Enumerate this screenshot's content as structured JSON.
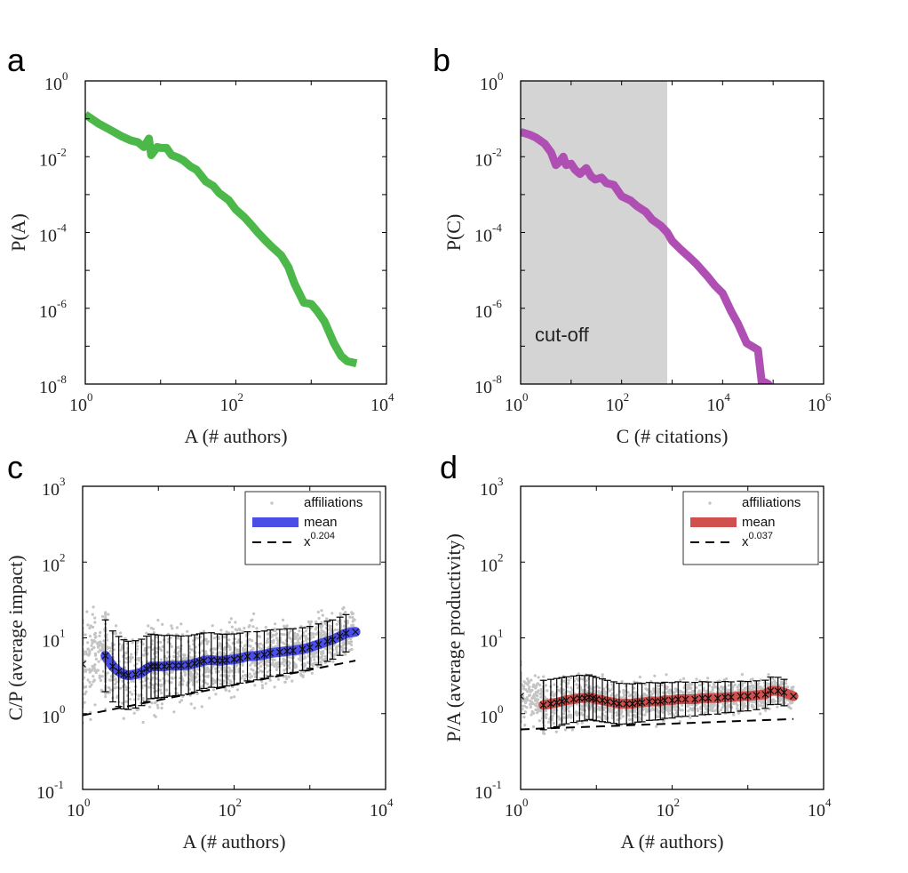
{
  "colors": {
    "panel_a_line": "#4db84a",
    "panel_b_line": "#b04fb3",
    "panel_c_mean": "#4a4ee6",
    "panel_d_mean": "#d0504e",
    "scatter": "#c4c4c4",
    "cutoff_shade": "#d4d4d4"
  },
  "chart_data": [
    {
      "panel": "a",
      "type": "line",
      "xlabel": "A (# authors)",
      "ylabel": "P(A)",
      "xscale": "log",
      "yscale": "log",
      "xlim": [
        1,
        10000
      ],
      "ylim": [
        1e-08,
        1
      ],
      "xticks": [
        {
          "base": "10",
          "exp": "0"
        },
        {
          "base": "10",
          "exp": "2"
        },
        {
          "base": "10",
          "exp": "4"
        }
      ],
      "yticks": [
        {
          "base": "10",
          "exp": "0"
        },
        {
          "base": "10",
          "exp": "-2"
        },
        {
          "base": "10",
          "exp": "-4"
        },
        {
          "base": "10",
          "exp": "-6"
        },
        {
          "base": "10",
          "exp": "-8"
        }
      ],
      "grid": false,
      "series": [
        {
          "x": [
            1,
            1.5,
            2,
            3,
            4,
            5,
            6,
            7,
            7.5,
            8,
            9,
            10,
            12,
            14,
            17,
            20,
            25,
            30,
            40,
            50,
            60,
            80,
            100,
            130,
            160,
            200,
            250,
            300,
            400,
            500,
            600,
            800,
            1000,
            1200,
            1500,
            2000,
            2500,
            3000,
            4000
          ],
          "y": [
            0.13,
            0.075,
            0.055,
            0.035,
            0.027,
            0.024,
            0.018,
            0.03,
            0.011,
            0.013,
            0.018,
            0.017,
            0.017,
            0.011,
            0.0095,
            0.008,
            0.0055,
            0.0045,
            0.0022,
            0.0017,
            0.0011,
            0.00072,
            0.0004,
            0.00025,
            0.00016,
            9.5e-05,
            6e-05,
            4.2e-05,
            2.5e-05,
            1.2e-05,
            4.5e-06,
            1.4e-06,
            1.3e-06,
            8.5e-07,
            4.5e-07,
            1.2e-07,
            5.5e-08,
            4e-08,
            3.5e-08
          ]
        }
      ]
    },
    {
      "panel": "b",
      "type": "line",
      "xlabel": "C (# citations)",
      "ylabel": "P(C)",
      "xscale": "log",
      "yscale": "log",
      "xlim": [
        1,
        1000000
      ],
      "ylim": [
        1e-08,
        1
      ],
      "xticks": [
        {
          "base": "10",
          "exp": "0"
        },
        {
          "base": "10",
          "exp": "2"
        },
        {
          "base": "10",
          "exp": "4"
        },
        {
          "base": "10",
          "exp": "6"
        }
      ],
      "yticks": [
        {
          "base": "10",
          "exp": "0"
        },
        {
          "base": "10",
          "exp": "-2"
        },
        {
          "base": "10",
          "exp": "-4"
        },
        {
          "base": "10",
          "exp": "-6"
        },
        {
          "base": "10",
          "exp": "-8"
        }
      ],
      "grid": false,
      "annotation": "cut-off",
      "cutoff_range": [
        1,
        800
      ],
      "series": [
        {
          "x": [
            1,
            1.5,
            2,
            3,
            4,
            5,
            6,
            7,
            8,
            10,
            12,
            15,
            20,
            25,
            30,
            40,
            50,
            70,
            100,
            150,
            200,
            300,
            400,
            600,
            800,
            1000,
            1500,
            2000,
            3000,
            5000,
            7000,
            10000,
            15000,
            20000,
            30000,
            50000,
            60000,
            70000,
            80000,
            90000
          ],
          "y": [
            0.045,
            0.038,
            0.032,
            0.022,
            0.013,
            0.006,
            0.0075,
            0.01,
            0.006,
            0.0065,
            0.0045,
            0.0035,
            0.005,
            0.003,
            0.0025,
            0.0028,
            0.002,
            0.0018,
            0.0009,
            0.0007,
            0.0005,
            0.00035,
            0.00022,
            0.00015,
            0.0001,
            6e-05,
            3.5e-05,
            2.5e-05,
            1.5e-05,
            7e-06,
            4e-06,
            2.5e-06,
            8e-07,
            4e-07,
            1.2e-07,
            8e-08,
            1e-08,
            1.1e-08,
            1e-08,
            3.5e-09
          ]
        }
      ]
    },
    {
      "panel": "c",
      "type": "scatter",
      "xlabel": "A (# authors)",
      "ylabel": "C/P (average impact)",
      "xscale": "log",
      "yscale": "log",
      "xlim": [
        1,
        10000
      ],
      "ylim": [
        0.1,
        1000
      ],
      "xticks": [
        {
          "base": "10",
          "exp": "0"
        },
        {
          "base": "10",
          "exp": "2"
        },
        {
          "base": "10",
          "exp": "4"
        }
      ],
      "yticks": [
        {
          "base": "10",
          "exp": "3"
        },
        {
          "base": "10",
          "exp": "2"
        },
        {
          "base": "10",
          "exp": "1"
        },
        {
          "base": "10",
          "exp": "0"
        },
        {
          "base": "10",
          "exp": "-1"
        }
      ],
      "grid": false,
      "legend": {
        "placement": "top-right",
        "entries": [
          {
            "label": "affiliations",
            "style": "points"
          },
          {
            "label": "mean",
            "style": "band"
          },
          {
            "label": "x",
            "exponent": "0.204",
            "style": "dashed"
          }
        ]
      },
      "scatter_spread_decades": 0.45,
      "mean": {
        "x": [
          1,
          2,
          2.5,
          3,
          3.5,
          4,
          5,
          6,
          7,
          8,
          9,
          10,
          12,
          14,
          17,
          20,
          25,
          30,
          35,
          40,
          50,
          60,
          70,
          80,
          100,
          120,
          150,
          200,
          250,
          300,
          400,
          500,
          600,
          800,
          1000,
          1300,
          1700,
          2000,
          2500,
          3000,
          4000
        ],
        "y": [
          4.5,
          5.8,
          4.2,
          3.6,
          3.3,
          3.2,
          3.3,
          3.5,
          3.9,
          4.2,
          4.2,
          4.2,
          4.2,
          4.3,
          4.3,
          4.3,
          4.4,
          4.6,
          4.8,
          5.0,
          5.1,
          5.0,
          5.0,
          5.1,
          5.2,
          5.4,
          5.7,
          5.8,
          6.0,
          6.3,
          6.5,
          6.7,
          6.8,
          7.1,
          7.5,
          8.2,
          9.0,
          9.5,
          10.5,
          11.5,
          12.0
        ],
        "markers": "x",
        "errorbars": true
      },
      "fit": {
        "exponent": 0.204,
        "x": [
          1,
          4000
        ],
        "y": [
          0.95,
          5.0
        ]
      }
    },
    {
      "panel": "d",
      "type": "scatter",
      "xlabel": "A (# authors)",
      "ylabel": "P/A (average productivity)",
      "xscale": "log",
      "yscale": "log",
      "xlim": [
        1,
        10000
      ],
      "ylim": [
        0.1,
        1000
      ],
      "xticks": [
        {
          "base": "10",
          "exp": "0"
        },
        {
          "base": "10",
          "exp": "2"
        },
        {
          "base": "10",
          "exp": "4"
        }
      ],
      "yticks": [
        {
          "base": "10",
          "exp": "3"
        },
        {
          "base": "10",
          "exp": "2"
        },
        {
          "base": "10",
          "exp": "1"
        },
        {
          "base": "10",
          "exp": "0"
        },
        {
          "base": "10",
          "exp": "-1"
        }
      ],
      "grid": false,
      "legend": {
        "placement": "top-right",
        "entries": [
          {
            "label": "affiliations",
            "style": "points"
          },
          {
            "label": "mean",
            "style": "band"
          },
          {
            "label": "x",
            "exponent": "0.037",
            "style": "dashed"
          }
        ]
      },
      "scatter_spread_decades": 0.25,
      "mean": {
        "x": [
          1,
          2,
          2.5,
          3,
          3.5,
          4,
          5,
          6,
          7,
          8,
          9,
          10,
          12,
          14,
          17,
          20,
          25,
          30,
          35,
          40,
          50,
          60,
          70,
          80,
          100,
          120,
          150,
          200,
          250,
          300,
          400,
          500,
          600,
          800,
          1000,
          1300,
          1700,
          2000,
          2500,
          3000,
          4000
        ],
        "y": [
          1.7,
          1.3,
          1.35,
          1.4,
          1.45,
          1.5,
          1.55,
          1.6,
          1.6,
          1.65,
          1.6,
          1.55,
          1.5,
          1.45,
          1.4,
          1.35,
          1.35,
          1.35,
          1.4,
          1.4,
          1.45,
          1.45,
          1.45,
          1.5,
          1.5,
          1.55,
          1.55,
          1.55,
          1.6,
          1.6,
          1.6,
          1.65,
          1.65,
          1.7,
          1.7,
          1.75,
          1.8,
          2.0,
          2.0,
          1.9,
          1.7
        ],
        "markers": "x",
        "errorbars": true
      },
      "fit": {
        "exponent": 0.037,
        "x": [
          1,
          4000
        ],
        "y": [
          0.62,
          0.85
        ]
      }
    }
  ]
}
